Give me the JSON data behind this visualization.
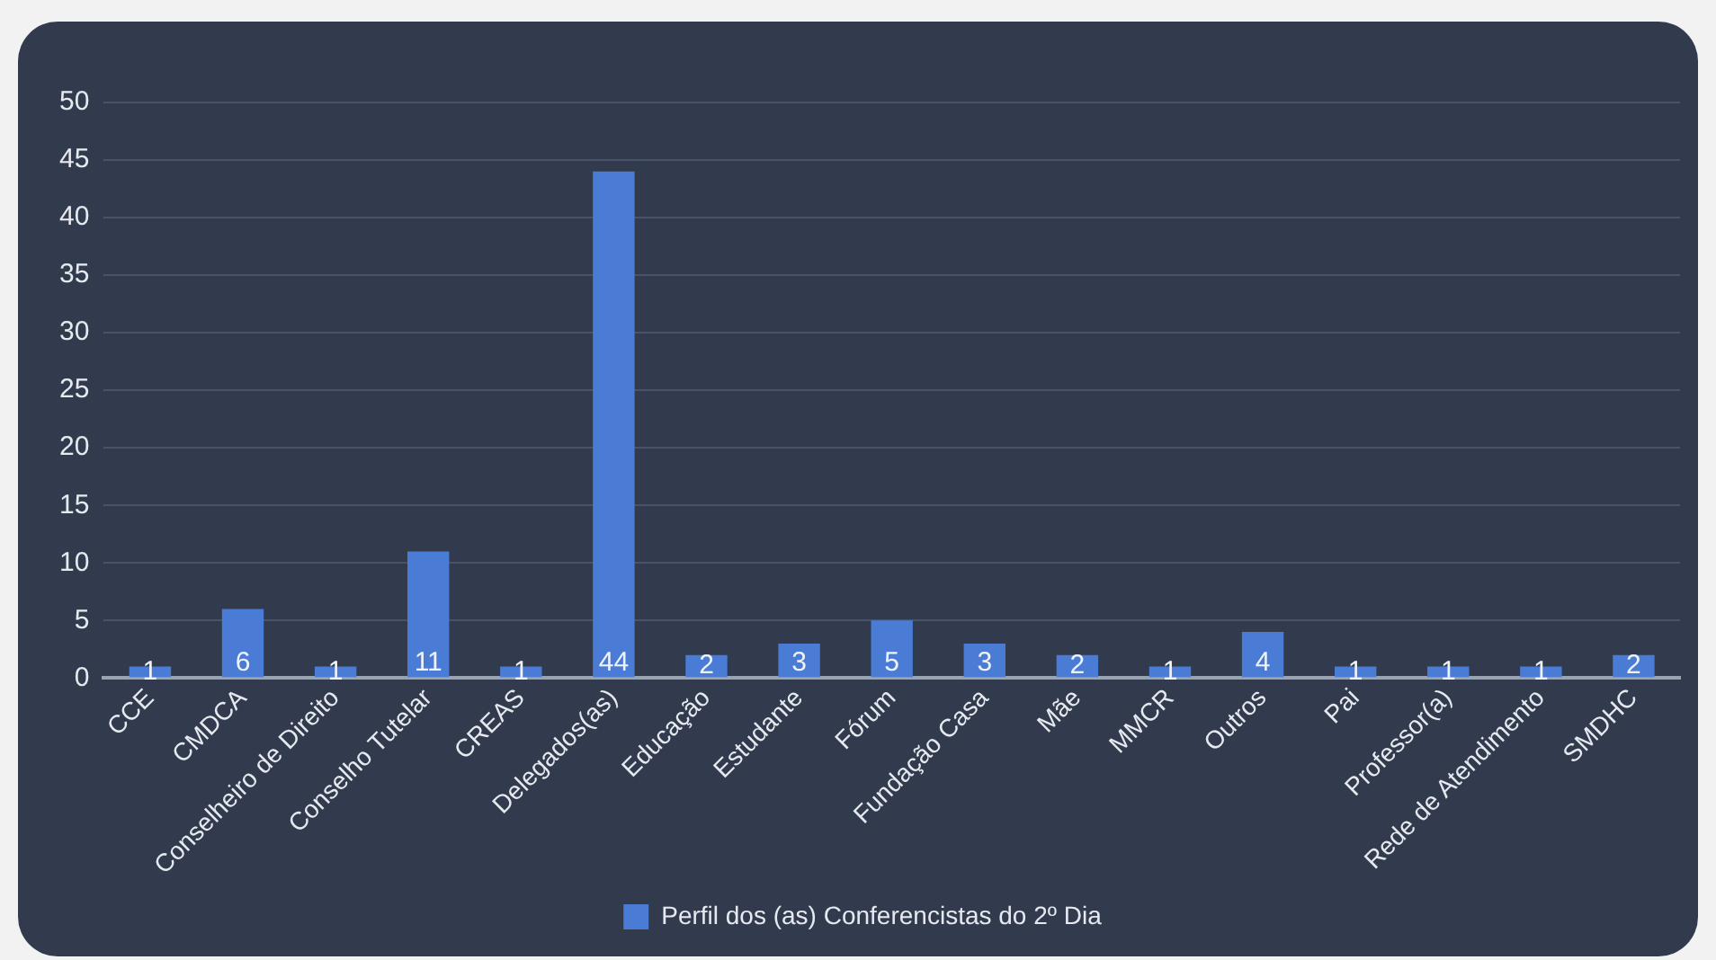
{
  "chart_data": {
    "type": "bar",
    "categories": [
      "CCE",
      "CMDCA",
      "Conselheiro de Direito",
      "Conselho Tutelar",
      "CREAS",
      "Delegados(as)",
      "Educação",
      "Estudante",
      "Fórum",
      "Fundação Casa",
      "Mãe",
      "MMCR",
      "Outros",
      "Pai",
      "Professor(a)",
      "Rede de Atendimento",
      "SMDHC"
    ],
    "series": [
      {
        "name": "Perfil dos (as) Conferencistas do 2º Dia",
        "color": "#4a7cd6",
        "values": [
          1,
          6,
          1,
          11,
          1,
          44,
          2,
          3,
          5,
          3,
          2,
          1,
          4,
          1,
          1,
          1,
          2
        ]
      }
    ],
    "ylim": [
      0,
      50
    ],
    "yticks": [
      0,
      5,
      10,
      15,
      20,
      25,
      30,
      35,
      40,
      45,
      50
    ],
    "grid": "y",
    "legend": "bottom",
    "data_labels": true
  }
}
